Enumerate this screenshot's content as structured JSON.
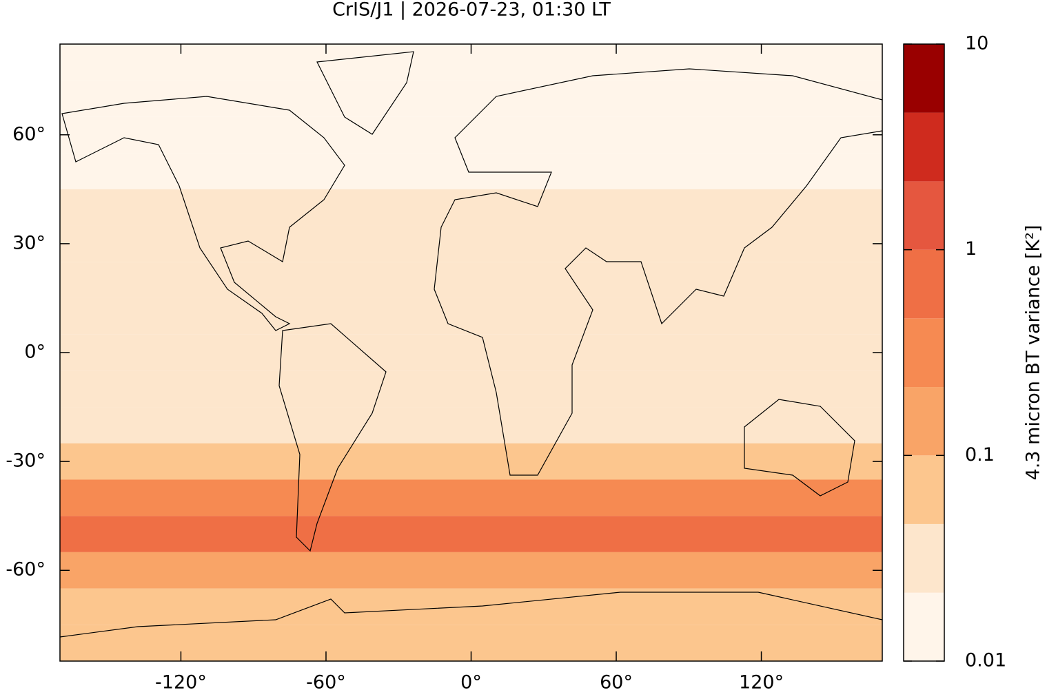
{
  "chart_data": {
    "type": "map",
    "title": "CrIS/J1 | 2026-07-23, 01:30 LT",
    "xlim": [
      -170,
      170
    ],
    "ylim": [
      -85,
      85
    ],
    "xticks": [
      {
        "value": -120,
        "label": "-120°"
      },
      {
        "value": -60,
        "label": "-60°"
      },
      {
        "value": 0,
        "label": "0°"
      },
      {
        "value": 60,
        "label": "60°"
      },
      {
        "value": 120,
        "label": "120°"
      }
    ],
    "yticks": [
      {
        "value": -60,
        "label": "-60°"
      },
      {
        "value": -30,
        "label": "-30°"
      },
      {
        "value": 0,
        "label": "0°"
      },
      {
        "value": 30,
        "label": "30°"
      },
      {
        "value": 60,
        "label": "60°"
      }
    ],
    "field": {
      "latitudes": [
        80,
        70,
        60,
        50,
        40,
        30,
        20,
        10,
        0,
        -10,
        -20,
        -30,
        -40,
        -50,
        -60,
        -70,
        -80
      ],
      "values": [
        0.01,
        0.01,
        0.012,
        0.015,
        0.03,
        0.04,
        0.035,
        0.03,
        0.03,
        0.035,
        0.04,
        0.08,
        0.3,
        0.5,
        0.2,
        0.08,
        0.05
      ]
    },
    "colorbar": {
      "label": "4.3 micron BT variance [K²]",
      "log": true,
      "levels": [
        0.01,
        0.0215,
        0.0464,
        0.1,
        0.215,
        0.464,
        1,
        2.15,
        4.64,
        10
      ],
      "colors": [
        "#fff5ea",
        "#fde6cc",
        "#fcc68e",
        "#f9a467",
        "#f68a52",
        "#ef6f45",
        "#e5573f",
        "#cf2b1e",
        "#990000"
      ],
      "ticks": [
        0.01,
        0.1,
        1,
        10
      ]
    }
  }
}
